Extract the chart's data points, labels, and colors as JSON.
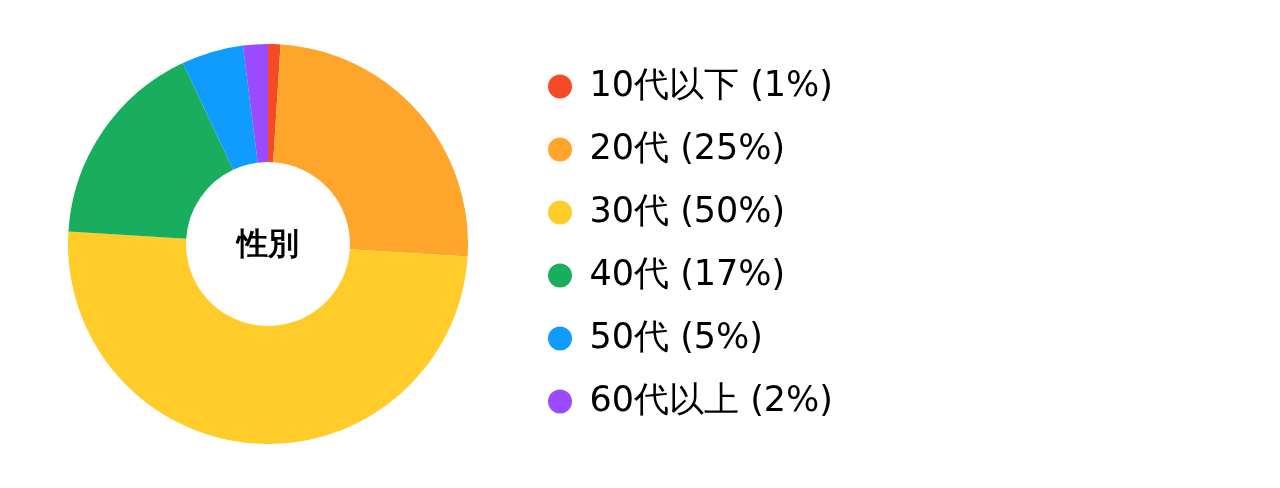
{
  "chart_data": {
    "type": "donut",
    "title": "性別",
    "categories": [
      "10代以下 (1%)",
      "20代 (25%)",
      "30代 (50%)",
      "40代 (17%)",
      "50代 (5%)",
      "60代以上 (2%)"
    ],
    "values": [
      1,
      25,
      50,
      17,
      5,
      2
    ],
    "colors": [
      "#f44b24",
      "#ffa52c",
      "#ffcc2a",
      "#18ae5d",
      "#109cff",
      "#9a4bff"
    ],
    "legend": "right"
  }
}
